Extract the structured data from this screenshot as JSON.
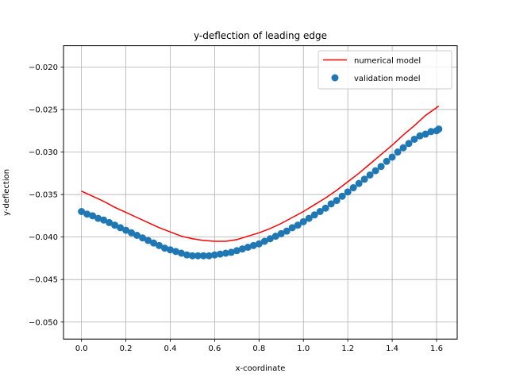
{
  "chart_data": {
    "type": "line",
    "title": "y-deflection of leading edge",
    "xlabel": "x-coordinate",
    "ylabel": "y-deflection",
    "xlim": [
      -0.081,
      1.693
    ],
    "ylim": [
      -0.052,
      -0.0175
    ],
    "xticks": [
      0.0,
      0.2,
      0.4,
      0.6,
      0.8,
      1.0,
      1.2,
      1.4,
      1.6
    ],
    "xtick_labels": [
      "0.0",
      "0.2",
      "0.4",
      "0.6",
      "0.8",
      "1.0",
      "1.2",
      "1.4",
      "1.6"
    ],
    "yticks": [
      -0.05,
      -0.045,
      -0.04,
      -0.035,
      -0.03,
      -0.025,
      -0.02
    ],
    "ytick_labels": [
      "−0.050",
      "−0.045",
      "−0.040",
      "−0.035",
      "−0.030",
      "−0.025",
      "−0.020"
    ],
    "grid": true,
    "legend_position": "top-right",
    "series": [
      {
        "name": "numerical model",
        "kind": "line",
        "color": "#ff0000",
        "x": [
          0.0,
          0.05,
          0.1,
          0.15,
          0.2,
          0.25,
          0.3,
          0.35,
          0.4,
          0.45,
          0.5,
          0.55,
          0.6,
          0.65,
          0.7,
          0.75,
          0.8,
          0.85,
          0.9,
          0.95,
          1.0,
          1.05,
          1.1,
          1.15,
          1.2,
          1.25,
          1.3,
          1.35,
          1.4,
          1.45,
          1.5,
          1.55,
          1.61
        ],
        "values": [
          -0.0346,
          -0.0352,
          -0.0358,
          -0.0365,
          -0.0371,
          -0.0377,
          -0.0383,
          -0.0389,
          -0.0394,
          -0.0399,
          -0.0402,
          -0.0404,
          -0.0405,
          -0.0405,
          -0.0403,
          -0.0399,
          -0.0395,
          -0.039,
          -0.0384,
          -0.0377,
          -0.037,
          -0.0362,
          -0.0354,
          -0.0345,
          -0.0335,
          -0.0325,
          -0.0314,
          -0.0303,
          -0.0292,
          -0.028,
          -0.0269,
          -0.0257,
          -0.0246
        ]
      },
      {
        "name": "validation model",
        "kind": "scatter",
        "color": "#1f77b4",
        "x": [
          0.0,
          0.025,
          0.05,
          0.075,
          0.1,
          0.125,
          0.15,
          0.175,
          0.2,
          0.225,
          0.25,
          0.275,
          0.3,
          0.325,
          0.35,
          0.375,
          0.4,
          0.425,
          0.45,
          0.475,
          0.5,
          0.525,
          0.55,
          0.575,
          0.6,
          0.625,
          0.65,
          0.675,
          0.7,
          0.725,
          0.75,
          0.775,
          0.8,
          0.825,
          0.85,
          0.875,
          0.9,
          0.925,
          0.95,
          0.975,
          1.0,
          1.025,
          1.05,
          1.075,
          1.1,
          1.125,
          1.15,
          1.175,
          1.2,
          1.225,
          1.25,
          1.275,
          1.3,
          1.325,
          1.35,
          1.375,
          1.4,
          1.425,
          1.45,
          1.475,
          1.5,
          1.525,
          1.55,
          1.575,
          1.6,
          1.61
        ],
        "values": [
          -0.037,
          -0.0373,
          -0.0375,
          -0.0378,
          -0.038,
          -0.0383,
          -0.0386,
          -0.0389,
          -0.0392,
          -0.0395,
          -0.0398,
          -0.0401,
          -0.0404,
          -0.0407,
          -0.041,
          -0.0413,
          -0.0415,
          -0.0417,
          -0.0419,
          -0.0421,
          -0.0422,
          -0.0422,
          -0.0422,
          -0.0422,
          -0.0421,
          -0.042,
          -0.0419,
          -0.0418,
          -0.0416,
          -0.0414,
          -0.0412,
          -0.041,
          -0.0408,
          -0.0405,
          -0.0402,
          -0.0399,
          -0.0396,
          -0.0393,
          -0.0389,
          -0.0386,
          -0.0382,
          -0.0378,
          -0.0374,
          -0.037,
          -0.0366,
          -0.0361,
          -0.0357,
          -0.0352,
          -0.0347,
          -0.0342,
          -0.0337,
          -0.0332,
          -0.0327,
          -0.0322,
          -0.0317,
          -0.0311,
          -0.0306,
          -0.03,
          -0.0295,
          -0.029,
          -0.0285,
          -0.0281,
          -0.0279,
          -0.0276,
          -0.0275,
          -0.0273
        ]
      }
    ]
  }
}
